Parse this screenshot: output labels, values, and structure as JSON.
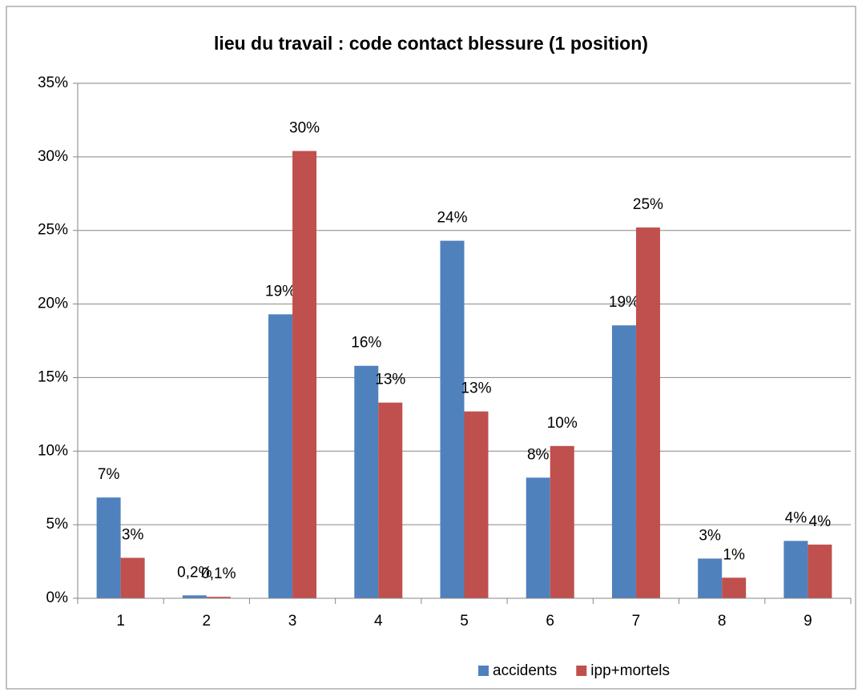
{
  "chart_data": {
    "type": "bar",
    "title": "lieu du travail : code contact blessure (1 position)",
    "categories": [
      "1",
      "2",
      "3",
      "4",
      "5",
      "6",
      "7",
      "8",
      "9"
    ],
    "series": [
      {
        "name": "accidents",
        "color": "#4f81bd",
        "values": [
          6.85,
          0.2,
          19.3,
          15.8,
          24.3,
          8.2,
          18.55,
          2.7,
          3.9
        ],
        "value_labels": [
          "7%",
          "0,2%",
          "19%",
          "16%",
          "24%",
          "8%",
          "19%",
          "3%",
          "4%"
        ]
      },
      {
        "name": "ipp+mortels",
        "color": "#c0504d",
        "values": [
          2.75,
          0.1,
          30.4,
          13.3,
          12.7,
          10.35,
          25.2,
          1.4,
          3.65
        ],
        "value_labels": [
          "3%",
          "0,1%",
          "30%",
          "13%",
          "13%",
          "10%",
          "25%",
          "1%",
          "4%"
        ]
      }
    ],
    "ylim": [
      0,
      35
    ],
    "yticks": [
      {
        "value": 0,
        "label": "0%"
      },
      {
        "value": 5,
        "label": "5%"
      },
      {
        "value": 10,
        "label": "10%"
      },
      {
        "value": 15,
        "label": "15%"
      },
      {
        "value": 20,
        "label": "20%"
      },
      {
        "value": 25,
        "label": "25%"
      },
      {
        "value": 30,
        "label": "30%"
      },
      {
        "value": 35,
        "label": "35%"
      }
    ],
    "grid": true,
    "legend": "bottom"
  }
}
